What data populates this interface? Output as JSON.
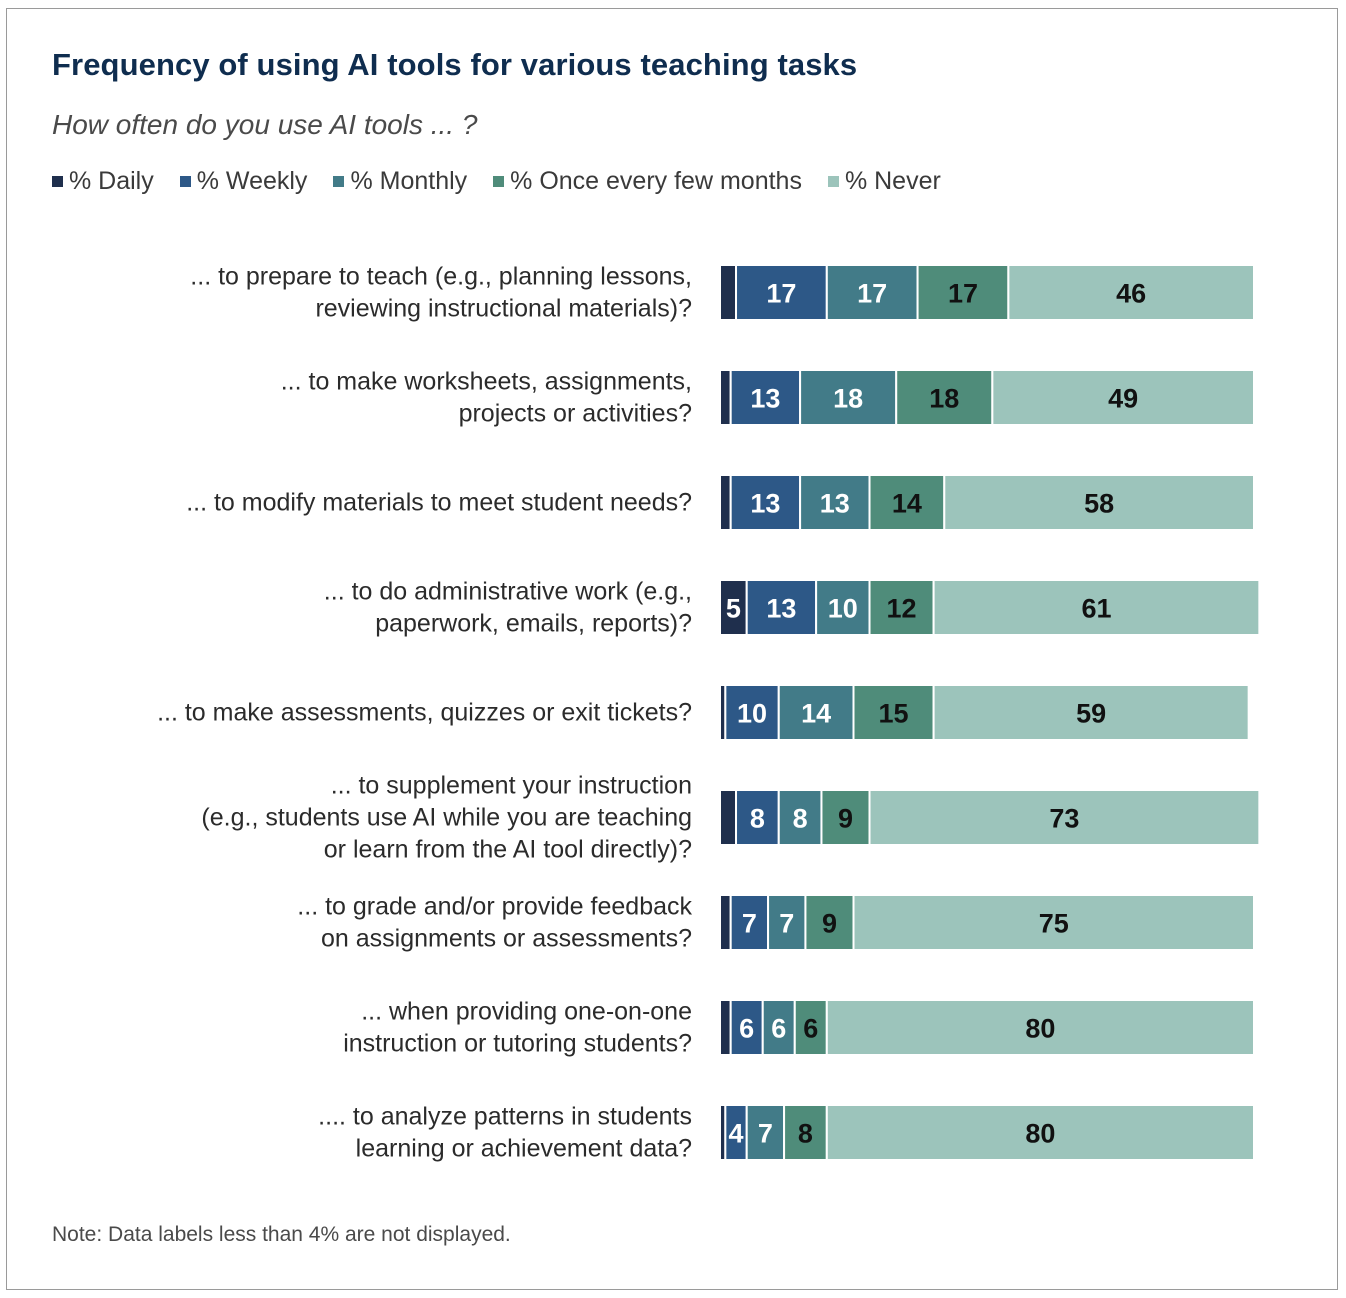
{
  "title": "Frequency of using AI tools for various teaching tasks",
  "subtitle": "How often do you use AI tools ... ?",
  "note": "Note: Data labels less than 4% are not displayed.",
  "colors": {
    "daily": "#1f2f4d",
    "weekly": "#2d5887",
    "monthly": "#427b88",
    "few_months": "#4f8c7a",
    "never": "#9cc4bb"
  },
  "legend": [
    {
      "label": "% Daily",
      "color": "#1f2f4d"
    },
    {
      "label": "% Weekly",
      "color": "#2d5887"
    },
    {
      "label": "% Monthly",
      "color": "#427b88"
    },
    {
      "label": "% Once every few months",
      "color": "#4f8c7a"
    },
    {
      "label": "% Never",
      "color": "#9cc4bb"
    }
  ],
  "chart_data": {
    "type": "bar",
    "orientation": "horizontal",
    "stacked": true,
    "xlim": [
      0,
      100
    ],
    "label_threshold": 4,
    "categories": [
      [
        "... to prepare to teach (e.g., planning lessons,",
        "reviewing instructional materials)?"
      ],
      [
        "... to make worksheets, assignments,",
        "projects or activities?"
      ],
      [
        "... to modify materials to meet student needs?"
      ],
      [
        "... to do administrative work (e.g.,",
        "paperwork, emails, reports)?"
      ],
      [
        "... to make assessments, quizzes or exit tickets?"
      ],
      [
        "... to supplement your instruction",
        "(e.g., students use AI while you are teaching",
        "or learn from the AI tool directly)?"
      ],
      [
        "... to grade and/or provide feedback",
        "on assignments or assessments?"
      ],
      [
        "... when providing one-on-one",
        "instruction or tutoring students?"
      ],
      [
        ".... to analyze patterns in students",
        "learning or achievement data?"
      ]
    ],
    "series": [
      {
        "name": "% Daily",
        "values": [
          3,
          2,
          2,
          5,
          1,
          3,
          2,
          2,
          1
        ]
      },
      {
        "name": "% Weekly",
        "values": [
          17,
          13,
          13,
          13,
          10,
          8,
          7,
          6,
          4
        ]
      },
      {
        "name": "% Monthly",
        "values": [
          17,
          18,
          13,
          10,
          14,
          8,
          7,
          6,
          7
        ]
      },
      {
        "name": "% Once every few months",
        "values": [
          17,
          18,
          14,
          12,
          15,
          9,
          9,
          6,
          8
        ]
      },
      {
        "name": "% Never",
        "values": [
          46,
          49,
          58,
          61,
          59,
          73,
          75,
          80,
          80
        ]
      }
    ]
  }
}
